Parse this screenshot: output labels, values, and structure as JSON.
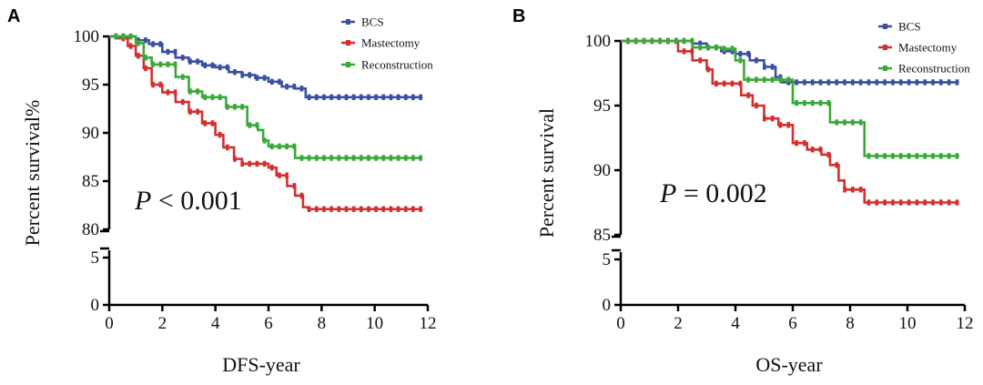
{
  "chart_data": [
    {
      "panel": "A",
      "type": "line",
      "xlabel": "DFS-year",
      "ylabel": "Percent survival%",
      "annotation": {
        "italic": "P",
        "rest": " < 0.001"
      },
      "xlim": [
        0,
        12
      ],
      "xticks": [
        0,
        2,
        4,
        6,
        8,
        10,
        12
      ],
      "x_tick_labels": [
        "0",
        "2",
        "4",
        "6",
        "8",
        "10",
        "12"
      ],
      "y_break": true,
      "ylim_lower": [
        0,
        5
      ],
      "ylim_upper": [
        80,
        100
      ],
      "yticks_lower": [
        0,
        5
      ],
      "y_tick_labels_lower": [
        "0",
        "5"
      ],
      "yticks_upper": [
        80,
        85,
        90,
        95,
        100
      ],
      "y_tick_labels_upper": [
        "80",
        "85",
        "90",
        "95",
        "100"
      ],
      "legend_position": "top-right",
      "series": [
        {
          "name": "BCS",
          "color": "#3a4fa0",
          "points": [
            [
              0,
              100
            ],
            [
              0.5,
              100
            ],
            [
              1,
              99.6
            ],
            [
              1.5,
              99.2
            ],
            [
              2,
              98.4
            ],
            [
              2.5,
              97.8
            ],
            [
              3,
              97.4
            ],
            [
              3.5,
              97
            ],
            [
              4,
              96.8
            ],
            [
              4.5,
              96.3
            ],
            [
              5,
              96
            ],
            [
              5.5,
              95.7
            ],
            [
              6,
              95.3
            ],
            [
              6.5,
              94.8
            ],
            [
              7,
              94.6
            ],
            [
              7.4,
              93.7
            ],
            [
              8,
              93.7
            ],
            [
              10,
              93.7
            ],
            [
              11.8,
              93.7
            ]
          ]
        },
        {
          "name": "Mastectomy",
          "color": "#d32f2f",
          "points": [
            [
              0,
              100
            ],
            [
              0.3,
              99.8
            ],
            [
              0.7,
              99
            ],
            [
              1,
              98
            ],
            [
              1.3,
              96.7
            ],
            [
              1.6,
              95
            ],
            [
              2,
              94.2
            ],
            [
              2.5,
              93.2
            ],
            [
              3,
              92.2
            ],
            [
              3.5,
              91
            ],
            [
              4,
              89.8
            ],
            [
              4.3,
              88.5
            ],
            [
              4.7,
              87.3
            ],
            [
              5,
              86.8
            ],
            [
              5.5,
              86.8
            ],
            [
              6,
              86.4
            ],
            [
              6.3,
              85.6
            ],
            [
              6.7,
              84.5
            ],
            [
              7,
              83.5
            ],
            [
              7.3,
              82.3
            ],
            [
              7.5,
              82.1
            ],
            [
              8,
              82.1
            ],
            [
              10,
              82.1
            ],
            [
              11.8,
              82.1
            ]
          ]
        },
        {
          "name": "Reconstruction",
          "color": "#3aa838",
          "points": [
            [
              0,
              100
            ],
            [
              0.5,
              100
            ],
            [
              1,
              99.3
            ],
            [
              1.3,
              97.8
            ],
            [
              1.6,
              97.1
            ],
            [
              2.3,
              97.1
            ],
            [
              2.5,
              95.8
            ],
            [
              3,
              94.3
            ],
            [
              3.5,
              93.7
            ],
            [
              4.2,
              93.7
            ],
            [
              4.4,
              92.7
            ],
            [
              5,
              92.7
            ],
            [
              5.2,
              90.8
            ],
            [
              5.6,
              90.3
            ],
            [
              5.8,
              89.2
            ],
            [
              6,
              88.6
            ],
            [
              6.8,
              88.6
            ],
            [
              7,
              87.4
            ],
            [
              8,
              87.4
            ],
            [
              10,
              87.4
            ],
            [
              11.8,
              87.4
            ]
          ]
        }
      ]
    },
    {
      "panel": "B",
      "type": "line",
      "xlabel": "OS-year",
      "ylabel": "Percent survival",
      "annotation": {
        "italic": "P",
        "rest": " = 0.002"
      },
      "xlim": [
        0,
        12
      ],
      "xticks": [
        0,
        2,
        4,
        6,
        8,
        10,
        12
      ],
      "x_tick_labels": [
        "0",
        "2",
        "4",
        "6",
        "8",
        "10",
        "12"
      ],
      "y_break": true,
      "ylim_lower": [
        0,
        5
      ],
      "ylim_upper": [
        85,
        100
      ],
      "yticks_lower": [
        0,
        5
      ],
      "y_tick_labels_lower": [
        "0",
        "5"
      ],
      "yticks_upper": [
        85,
        90,
        95,
        100
      ],
      "y_tick_labels_upper": [
        "85",
        "90",
        "95",
        "100"
      ],
      "legend_position": "top-right",
      "series": [
        {
          "name": "BCS",
          "color": "#3a4fa0",
          "points": [
            [
              0,
              100
            ],
            [
              1,
              100
            ],
            [
              2,
              100
            ],
            [
              2.5,
              99.8
            ],
            [
              3,
              99.5
            ],
            [
              3.5,
              99.2
            ],
            [
              4,
              99
            ],
            [
              4.5,
              98.5
            ],
            [
              5,
              98
            ],
            [
              5.4,
              97.2
            ],
            [
              5.6,
              96.8
            ],
            [
              6,
              96.8
            ],
            [
              8,
              96.8
            ],
            [
              10,
              96.8
            ],
            [
              11.8,
              96.8
            ]
          ]
        },
        {
          "name": "Mastectomy",
          "color": "#d32f2f",
          "points": [
            [
              0,
              100
            ],
            [
              1.5,
              100
            ],
            [
              2,
              99.2
            ],
            [
              2.5,
              98.5
            ],
            [
              3,
              97.8
            ],
            [
              3.2,
              96.7
            ],
            [
              4,
              96.7
            ],
            [
              4.2,
              95.8
            ],
            [
              4.6,
              95
            ],
            [
              5,
              94
            ],
            [
              5.5,
              93.5
            ],
            [
              6,
              92.1
            ],
            [
              6.5,
              91.6
            ],
            [
              7,
              91.2
            ],
            [
              7.3,
              90.4
            ],
            [
              7.6,
              89.2
            ],
            [
              7.8,
              88.5
            ],
            [
              8.3,
              88.5
            ],
            [
              8.5,
              87.5
            ],
            [
              10,
              87.5
            ],
            [
              11.8,
              87.5
            ]
          ]
        },
        {
          "name": "Reconstruction",
          "color": "#3aa838",
          "points": [
            [
              0,
              100
            ],
            [
              2,
              100
            ],
            [
              2.5,
              99.5
            ],
            [
              3.5,
              99.4
            ],
            [
              4,
              98.5
            ],
            [
              4.3,
              97
            ],
            [
              5.5,
              97
            ],
            [
              6,
              95.2
            ],
            [
              7,
              95.2
            ],
            [
              7.3,
              93.7
            ],
            [
              8.4,
              93.7
            ],
            [
              8.5,
              91.1
            ],
            [
              10,
              91.1
            ],
            [
              11.8,
              91.1
            ]
          ]
        }
      ]
    }
  ]
}
